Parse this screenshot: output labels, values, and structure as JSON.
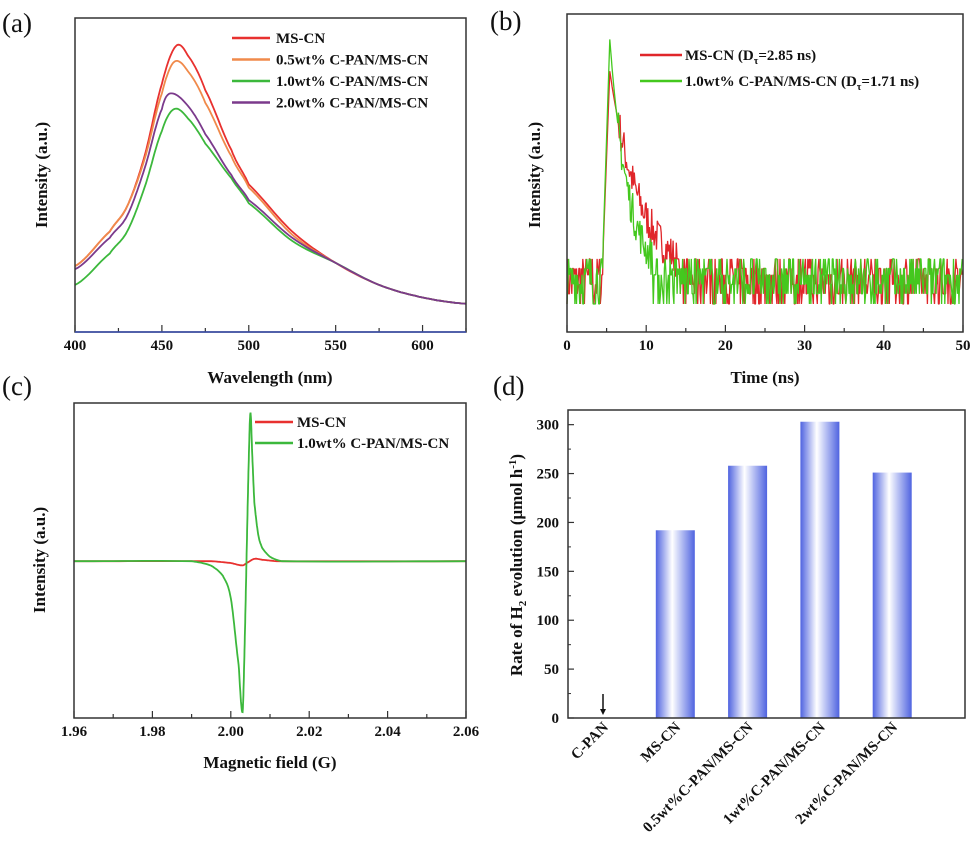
{
  "chart_data": [
    {
      "panel": "(a)",
      "type": "line",
      "xlabel": "Wavelength (nm)",
      "ylabel": "Intensity (a.u.)",
      "xlim": [
        400,
        625
      ],
      "ylim": [
        0,
        1
      ],
      "xticks": [
        400,
        450,
        500,
        550,
        600
      ],
      "minor_step": 25,
      "legend_position": "top-right",
      "series": [
        {
          "name": "MS-CN",
          "color": "#e8312f",
          "points": [
            [
              400,
              0.21
            ],
            [
              420,
              0.32
            ],
            [
              430,
              0.4
            ],
            [
              440,
              0.56
            ],
            [
              450,
              0.79
            ],
            [
              458,
              0.91
            ],
            [
              465,
              0.88
            ],
            [
              475,
              0.77
            ],
            [
              490,
              0.58
            ],
            [
              500,
              0.47
            ],
            [
              525,
              0.32
            ],
            [
              550,
              0.22
            ],
            [
              575,
              0.15
            ],
            [
              600,
              0.11
            ],
            [
              625,
              0.09
            ]
          ]
        },
        {
          "name": "0.5wt% C-PAN/MS-CN",
          "color": "#f08a4b",
          "points": [
            [
              400,
              0.21
            ],
            [
              420,
              0.32
            ],
            [
              430,
              0.4
            ],
            [
              440,
              0.55
            ],
            [
              450,
              0.76
            ],
            [
              457,
              0.86
            ],
            [
              465,
              0.83
            ],
            [
              475,
              0.73
            ],
            [
              490,
              0.56
            ],
            [
              500,
              0.46
            ],
            [
              525,
              0.31
            ],
            [
              550,
              0.22
            ],
            [
              575,
              0.15
            ],
            [
              600,
              0.11
            ],
            [
              625,
              0.09
            ]
          ]
        },
        {
          "name": "1.0wt% C-PAN/MS-CN",
          "color": "#3cb83c",
          "points": [
            [
              400,
              0.15
            ],
            [
              420,
              0.25
            ],
            [
              430,
              0.32
            ],
            [
              440,
              0.46
            ],
            [
              450,
              0.64
            ],
            [
              457,
              0.71
            ],
            [
              465,
              0.68
            ],
            [
              475,
              0.6
            ],
            [
              490,
              0.49
            ],
            [
              500,
              0.41
            ],
            [
              525,
              0.29
            ],
            [
              550,
              0.22
            ],
            [
              575,
              0.15
            ],
            [
              600,
              0.11
            ],
            [
              625,
              0.09
            ]
          ]
        },
        {
          "name": "2.0wt% C-PAN/MS-CN",
          "color": "#7b3a8c",
          "points": [
            [
              400,
              0.2
            ],
            [
              420,
              0.3
            ],
            [
              430,
              0.37
            ],
            [
              440,
              0.52
            ],
            [
              450,
              0.71
            ],
            [
              455,
              0.76
            ],
            [
              465,
              0.72
            ],
            [
              475,
              0.63
            ],
            [
              490,
              0.5
            ],
            [
              500,
              0.42
            ],
            [
              525,
              0.3
            ],
            [
              550,
              0.22
            ],
            [
              575,
              0.15
            ],
            [
              600,
              0.11
            ],
            [
              625,
              0.09
            ]
          ]
        }
      ]
    },
    {
      "panel": "(b)",
      "type": "line",
      "xlabel": "Time (ns)",
      "ylabel": "Intensity (a.u.)",
      "xlim": [
        0,
        50
      ],
      "ylim": [
        0,
        1
      ],
      "xticks": [
        0,
        10,
        20,
        30,
        40,
        50
      ],
      "minor_step": 5,
      "legend_position": "top-right",
      "lifetime_symbol": "τ",
      "series": [
        {
          "name": "MS-CN",
          "lifetime_ns": "2.85",
          "color": "#e0262a",
          "peak_time": 5.4,
          "peak": 0.81,
          "baseline": 0.088,
          "noise_top": 0.2
        },
        {
          "name": "1.0wt% C-PAN/MS-CN",
          "lifetime_ns": "1.71",
          "color": "#44c81e",
          "peak_time": 5.4,
          "peak": 0.91,
          "baseline": 0.088,
          "noise_top": 0.2
        }
      ]
    },
    {
      "panel": "(c)",
      "type": "line",
      "xlabel": "Magnetic field (G)",
      "ylabel": "Intensity (a.u.)",
      "xlim": [
        1.96,
        2.06
      ],
      "ylim": [
        -1.06,
        1.07
      ],
      "xticks": [
        "1.96",
        "1.98",
        "2.00",
        "2.02",
        "2.04",
        "2.06"
      ],
      "minor_step": 0.01,
      "legend_position": "top-right",
      "series": [
        {
          "name": "MS-CN",
          "color": "#e8312f",
          "points": [
            [
              1.96,
              0
            ],
            [
              1.995,
              0
            ],
            [
              2.0,
              -0.012
            ],
            [
              2.003,
              -0.028
            ],
            [
              2.004,
              -0.012
            ],
            [
              2.006,
              0.016
            ],
            [
              2.008,
              0.01
            ],
            [
              2.012,
              0
            ],
            [
              2.06,
              0
            ]
          ]
        },
        {
          "name": "1.0wt% C-PAN/MS-CN",
          "color": "#3cb83c",
          "points": [
            [
              1.96,
              0
            ],
            [
              1.99,
              0
            ],
            [
              1.995,
              -0.03
            ],
            [
              1.998,
              -0.1
            ],
            [
              2.0,
              -0.25
            ],
            [
              2.002,
              -0.7
            ],
            [
              2.003,
              -1.02
            ],
            [
              2.0035,
              -0.6
            ],
            [
              2.004,
              0
            ],
            [
              2.0045,
              0.6
            ],
            [
              2.005,
              1.0
            ],
            [
              2.0055,
              0.7
            ],
            [
              2.006,
              0.4
            ],
            [
              2.007,
              0.18
            ],
            [
              2.008,
              0.09
            ],
            [
              2.01,
              0.03
            ],
            [
              2.013,
              0
            ],
            [
              2.06,
              0
            ]
          ]
        }
      ]
    },
    {
      "panel": "(d)",
      "type": "bar",
      "ylabel_parts": [
        "Rate of H",
        "2",
        " evolution (μmol h",
        "-1",
        ")"
      ],
      "ylim": [
        0,
        315
      ],
      "yticks": [
        0,
        50,
        100,
        150,
        200,
        250,
        300
      ],
      "categories": [
        "C-PAN",
        "MS-CN",
        "0.5wt%C-PAN/MS-CN",
        "1wt%C-PAN/MS-CN",
        "2wt%C-PAN/MS-CN"
      ],
      "values": [
        0,
        192,
        258,
        303,
        251
      ],
      "bar_color": "#4f63e0",
      "arrow_on": "C-PAN"
    }
  ]
}
